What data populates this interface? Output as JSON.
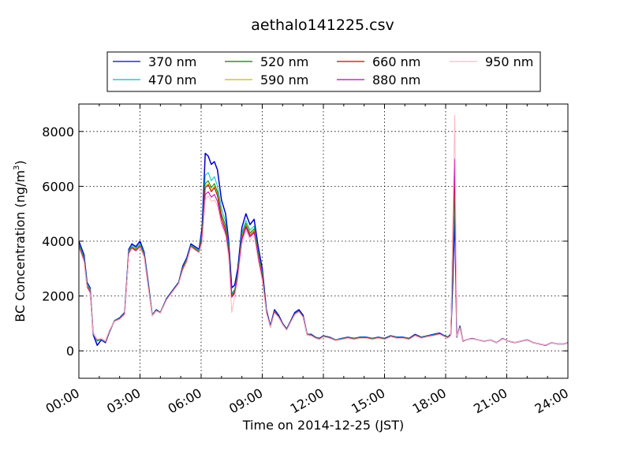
{
  "chart_data": {
    "type": "line",
    "title": "aethalo141225.csv",
    "xlabel": "Time on 2014-12-25 (JST)",
    "ylabel_main": "BC Concentration (ng/m",
    "ylabel_sup": "3",
    "ylabel_close": ")",
    "xlim": [
      0,
      24
    ],
    "ylim": [
      -1000,
      9000
    ],
    "x_tick_values": [
      0,
      3,
      6,
      9,
      12,
      15,
      18,
      21,
      24
    ],
    "x_tick_labels": [
      "00:00",
      "03:00",
      "06:00",
      "09:00",
      "12:00",
      "15:00",
      "18:00",
      "21:00",
      "24:00"
    ],
    "y_tick_values": [
      0,
      2000,
      4000,
      6000,
      8000
    ],
    "y_tick_labels": [
      "0",
      "2000",
      "4000",
      "6000",
      "8000"
    ],
    "grid": true,
    "legend_position": "top-center",
    "legend_columns": 4,
    "x": [
      0.0,
      0.25,
      0.4,
      0.55,
      0.7,
      0.9,
      1.1,
      1.3,
      1.5,
      1.75,
      2.0,
      2.25,
      2.45,
      2.6,
      2.8,
      3.0,
      3.2,
      3.4,
      3.6,
      3.8,
      4.0,
      4.3,
      4.6,
      4.9,
      5.1,
      5.3,
      5.5,
      5.7,
      5.9,
      6.05,
      6.2,
      6.35,
      6.5,
      6.65,
      6.8,
      7.0,
      7.2,
      7.35,
      7.5,
      7.65,
      7.8,
      8.0,
      8.2,
      8.4,
      8.6,
      8.8,
      9.0,
      9.2,
      9.4,
      9.6,
      9.8,
      10.0,
      10.2,
      10.4,
      10.6,
      10.8,
      11.0,
      11.2,
      11.4,
      11.6,
      11.8,
      12.0,
      12.3,
      12.6,
      12.9,
      13.2,
      13.5,
      13.8,
      14.1,
      14.4,
      14.7,
      15.0,
      15.3,
      15.6,
      15.9,
      16.2,
      16.5,
      16.8,
      17.1,
      17.4,
      17.7,
      17.95,
      18.1,
      18.25,
      18.35,
      18.45,
      18.55,
      18.7,
      18.85,
      19.0,
      19.3,
      19.6,
      19.9,
      20.2,
      20.5,
      20.8,
      21.1,
      21.4,
      21.7,
      22.0,
      22.3,
      22.6,
      22.9,
      23.2,
      23.5,
      23.8,
      24.0
    ],
    "series": [
      {
        "name": "370 nm",
        "color": "#0000cc",
        "width": 1.5,
        "values": [
          4000,
          3500,
          2500,
          2300,
          600,
          200,
          400,
          300,
          700,
          1100,
          1200,
          1400,
          3700,
          3900,
          3800,
          4000,
          3600,
          2500,
          1300,
          1500,
          1400,
          1900,
          2200,
          2500,
          3100,
          3400,
          3900,
          3800,
          3700,
          4500,
          7200,
          7100,
          6800,
          6900,
          6600,
          5500,
          5000,
          4000,
          2300,
          2400,
          3000,
          4500,
          5000,
          4600,
          4800,
          3800,
          3000,
          1500,
          900,
          1500,
          1300,
          1000,
          800,
          1100,
          1400,
          1500,
          1300,
          600,
          600,
          500,
          450,
          550,
          500,
          400,
          450,
          500,
          450,
          500,
          500,
          450,
          500,
          450,
          550,
          500,
          500,
          450,
          600,
          500,
          550,
          600,
          650,
          550,
          500,
          600,
          2500,
          5000,
          500,
          900,
          350,
          400,
          450,
          400,
          350,
          400,
          300,
          450,
          350,
          300,
          350,
          400,
          300,
          250,
          200,
          300,
          250,
          250,
          300
        ]
      },
      {
        "name": "470 nm",
        "color": "#00bfbf",
        "width": 1.0,
        "values": [
          3900,
          3400,
          2450,
          2250,
          650,
          350,
          420,
          330,
          720,
          1100,
          1180,
          1380,
          3650,
          3850,
          3750,
          3900,
          3550,
          2450,
          1300,
          1480,
          1400,
          1880,
          2180,
          2480,
          3050,
          3350,
          3850,
          3750,
          3650,
          4300,
          6400,
          6500,
          6200,
          6350,
          6000,
          5200,
          4700,
          3800,
          2100,
          2250,
          2850,
          4300,
          4750,
          4400,
          4550,
          3600,
          2850,
          1450,
          880,
          1450,
          1250,
          980,
          780,
          1080,
          1350,
          1450,
          1250,
          600,
          580,
          490,
          440,
          540,
          490,
          400,
          440,
          490,
          440,
          490,
          490,
          440,
          490,
          440,
          540,
          490,
          490,
          440,
          580,
          490,
          540,
          580,
          630,
          540,
          490,
          580,
          3000,
          5600,
          520,
          880,
          360,
          400,
          440,
          400,
          350,
          400,
          300,
          440,
          350,
          300,
          350,
          390,
          300,
          250,
          210,
          300,
          250,
          250,
          300
        ]
      },
      {
        "name": "520 nm",
        "color": "#007f00",
        "width": 1.0,
        "values": [
          3850,
          3350,
          2400,
          2200,
          650,
          380,
          430,
          340,
          730,
          1090,
          1170,
          1360,
          3600,
          3800,
          3700,
          3850,
          3500,
          2400,
          1290,
          1470,
          1390,
          1870,
          2170,
          2470,
          3020,
          3320,
          3830,
          3720,
          3620,
          4200,
          6100,
          6200,
          5950,
          6100,
          5800,
          5000,
          4550,
          3700,
          2050,
          2200,
          2800,
          4200,
          4650,
          4300,
          4450,
          3550,
          2800,
          1430,
          870,
          1430,
          1240,
          970,
          770,
          1070,
          1340,
          1440,
          1240,
          590,
          570,
          480,
          430,
          530,
          480,
          390,
          430,
          480,
          430,
          480,
          480,
          430,
          480,
          430,
          530,
          480,
          480,
          430,
          570,
          480,
          530,
          570,
          620,
          530,
          480,
          570,
          3300,
          6000,
          520,
          870,
          360,
          400,
          440,
          400,
          350,
          400,
          300,
          440,
          350,
          300,
          350,
          390,
          300,
          250,
          210,
          300,
          250,
          250,
          300
        ]
      },
      {
        "name": "590 nm",
        "color": "#bfbf00",
        "width": 1.0,
        "values": [
          3820,
          3320,
          2380,
          2180,
          640,
          390,
          430,
          340,
          730,
          1085,
          1165,
          1350,
          3580,
          3780,
          3680,
          3830,
          3480,
          2380,
          1285,
          1465,
          1385,
          1865,
          2165,
          2465,
          3000,
          3300,
          3810,
          3700,
          3600,
          4150,
          6000,
          6100,
          5850,
          6000,
          5700,
          4900,
          4450,
          3650,
          2000,
          2150,
          2750,
          4150,
          4600,
          4250,
          4400,
          3500,
          2750,
          1420,
          865,
          1420,
          1235,
          965,
          765,
          1065,
          1335,
          1435,
          1235,
          585,
          565,
          475,
          425,
          525,
          475,
          385,
          425,
          475,
          425,
          475,
          475,
          425,
          475,
          425,
          525,
          475,
          475,
          425,
          565,
          475,
          525,
          565,
          615,
          525,
          475,
          565,
          3500,
          6300,
          520,
          860,
          360,
          400,
          440,
          400,
          350,
          400,
          300,
          440,
          350,
          300,
          350,
          390,
          300,
          250,
          210,
          300,
          250,
          250,
          300
        ]
      },
      {
        "name": "660 nm",
        "color": "#cc0000",
        "width": 1.0,
        "values": [
          3800,
          3300,
          2350,
          2150,
          640,
          400,
          440,
          350,
          740,
          1080,
          1160,
          1340,
          3560,
          3760,
          3660,
          3810,
          3460,
          2360,
          1280,
          1460,
          1380,
          1860,
          2160,
          2460,
          2980,
          3280,
          3800,
          3690,
          3590,
          4100,
          5950,
          6050,
          5800,
          5950,
          5650,
          4850,
          4400,
          3600,
          1980,
          2130,
          2730,
          4100,
          4550,
          4200,
          4350,
          3450,
          2700,
          1410,
          860,
          1410,
          1230,
          960,
          760,
          1060,
          1330,
          1430,
          1230,
          580,
          560,
          470,
          420,
          520,
          470,
          380,
          420,
          470,
          420,
          470,
          470,
          420,
          470,
          420,
          520,
          470,
          470,
          420,
          560,
          470,
          520,
          560,
          610,
          520,
          470,
          560,
          3800,
          6500,
          520,
          850,
          360,
          400,
          440,
          400,
          350,
          400,
          300,
          440,
          350,
          300,
          350,
          390,
          300,
          250,
          210,
          300,
          250,
          250,
          300
        ]
      },
      {
        "name": "880 nm",
        "color": "#bf00bf",
        "width": 1.0,
        "values": [
          3780,
          3280,
          2330,
          2130,
          630,
          410,
          440,
          350,
          740,
          1075,
          1155,
          1330,
          3540,
          3740,
          3640,
          3790,
          3440,
          2340,
          1275,
          1455,
          1375,
          1855,
          2155,
          2455,
          2960,
          3260,
          3790,
          3680,
          3580,
          4050,
          5700,
          5800,
          5600,
          5700,
          5450,
          4700,
          4300,
          3500,
          1950,
          2100,
          2700,
          4050,
          4500,
          4150,
          4300,
          3400,
          2650,
          1400,
          855,
          1400,
          1225,
          955,
          755,
          1055,
          1325,
          1425,
          1225,
          575,
          555,
          465,
          415,
          515,
          465,
          375,
          415,
          465,
          415,
          465,
          465,
          415,
          465,
          415,
          515,
          465,
          465,
          415,
          555,
          465,
          515,
          555,
          605,
          515,
          465,
          555,
          4200,
          7000,
          520,
          840,
          360,
          400,
          440,
          400,
          350,
          400,
          300,
          440,
          350,
          300,
          350,
          390,
          300,
          250,
          210,
          300,
          250,
          250,
          300
        ]
      },
      {
        "name": "950 nm",
        "color": "#ffb6c1",
        "width": 1.0,
        "values": [
          3750,
          3250,
          2300,
          2100,
          620,
          420,
          450,
          360,
          750,
          1070,
          1150,
          1320,
          3520,
          3720,
          3620,
          3770,
          3420,
          2320,
          1270,
          1450,
          1370,
          1850,
          2150,
          2450,
          2940,
          3240,
          3780,
          3670,
          3570,
          3950,
          5500,
          5650,
          5450,
          5500,
          5300,
          4600,
          4200,
          3400,
          1400,
          2000,
          2600,
          3900,
          4400,
          4050,
          4200,
          3300,
          2550,
          1380,
          850,
          1380,
          1220,
          950,
          750,
          1050,
          1320,
          1420,
          1220,
          570,
          550,
          460,
          410,
          510,
          460,
          370,
          410,
          460,
          410,
          460,
          460,
          410,
          460,
          410,
          510,
          460,
          460,
          410,
          550,
          460,
          510,
          550,
          600,
          510,
          460,
          550,
          4500,
          8600,
          520,
          830,
          360,
          400,
          440,
          400,
          350,
          400,
          300,
          440,
          350,
          300,
          350,
          390,
          300,
          250,
          210,
          300,
          250,
          250,
          300
        ]
      }
    ]
  }
}
